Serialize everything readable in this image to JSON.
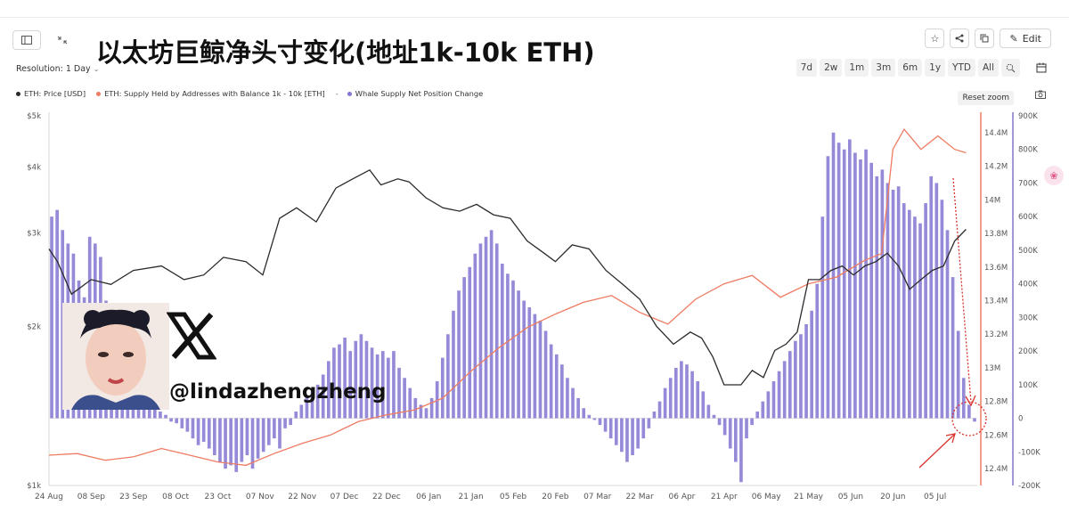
{
  "header": {
    "title": "以太坊巨鲸净头寸变化(地址1k-10k ETH)",
    "resolution_label": "Resolution: 1 Day",
    "edit_label": "Edit",
    "ranges": [
      "7d",
      "2w",
      "1m",
      "3m",
      "6m",
      "1y",
      "YTD",
      "All"
    ],
    "reset_zoom": "Reset zoom"
  },
  "watermark": {
    "handle": "@lindazhengzheng"
  },
  "colors": {
    "price": "#2b2b2b",
    "supply": "#ee7b62",
    "whale": "#8276d0",
    "annotation": "#d9302a"
  },
  "icons": [
    "sidebar-toggle-icon",
    "collapse-icon",
    "star-icon",
    "share-icon",
    "copy-icon",
    "pencil-icon",
    "search-zoom-icon",
    "calendar-icon",
    "camera-icon",
    "x-logo-icon"
  ],
  "chart_data": {
    "type": "bar",
    "legend": [
      {
        "name": "ETH: Price [USD]",
        "color": "#2b2b2b"
      },
      {
        "name": "ETH: Supply Held by Addresses with Balance 1k - 10k [ETH]",
        "color": "#ee7b62"
      },
      {
        "name": "Whale Supply Net Position Change",
        "color": "#8276d0"
      }
    ],
    "x_ticks": [
      "24 Aug",
      "08 Sep",
      "23 Sep",
      "08 Oct",
      "23 Oct",
      "07 Nov",
      "22 Nov",
      "07 Dec",
      "22 Dec",
      "06 Jan",
      "21 Jan",
      "05 Feb",
      "20 Feb",
      "07 Mar",
      "22 Mar",
      "06 Apr",
      "21 Apr",
      "06 May",
      "21 May",
      "05 Jun",
      "20 Jun",
      "05 Jul"
    ],
    "y_left_ticks": [
      "$5k",
      "$4k",
      "$3k",
      "$2k",
      "$1k"
    ],
    "y_left_values": [
      5000,
      4000,
      3000,
      2000,
      1000
    ],
    "y_left_scale": "log",
    "y_right1_ticks": [
      "14.4M",
      "14.2M",
      "14M",
      "13.8M",
      "13.6M",
      "13.4M",
      "13.2M",
      "13M",
      "12.8M",
      "12.6M",
      "12.4M"
    ],
    "y_right1_range": [
      12.3,
      14.5
    ],
    "y_right2_ticks": [
      "900K",
      "800K",
      "700K",
      "600K",
      "500K",
      "400K",
      "300K",
      "200K",
      "100K",
      "0",
      "-100K",
      "-200K"
    ],
    "y_right2_range": [
      -200000,
      900000
    ],
    "series": [
      {
        "name": "ETH: Price [USD]",
        "x": [
          0,
          3,
          8,
          15,
          22,
          30,
          40,
          48,
          55,
          62,
          70,
          76,
          82,
          88,
          95,
          102,
          108,
          114,
          118,
          124,
          128,
          134,
          140,
          146,
          152,
          158,
          164,
          170,
          176,
          180,
          186,
          192,
          198,
          204,
          210,
          216,
          222,
          228,
          232,
          236,
          240,
          246,
          250,
          254,
          258,
          262,
          266,
          270,
          274,
          278,
          282,
          286,
          290,
          294,
          298,
          302,
          306,
          310,
          314,
          318,
          322,
          326
        ],
        "values": [
          2800,
          2650,
          2300,
          2450,
          2400,
          2550,
          2600,
          2450,
          2500,
          2700,
          2650,
          2500,
          3200,
          3350,
          3150,
          3650,
          3800,
          3950,
          3700,
          3800,
          3750,
          3500,
          3350,
          3300,
          3400,
          3250,
          3200,
          2900,
          2750,
          2650,
          2850,
          2800,
          2550,
          2400,
          2250,
          2000,
          1850,
          1950,
          1900,
          1750,
          1550,
          1550,
          1650,
          1600,
          1800,
          1850,
          1950,
          2450,
          2450,
          2550,
          2600,
          2500,
          2600,
          2650,
          2750,
          2600,
          2350,
          2450,
          2550,
          2600,
          2900,
          3050
        ]
      },
      {
        "name": "ETH: Supply Held by Addresses with Balance 1k - 10k [ETH]",
        "x": [
          0,
          10,
          20,
          30,
          40,
          50,
          60,
          70,
          80,
          90,
          100,
          110,
          120,
          130,
          140,
          150,
          160,
          170,
          180,
          190,
          200,
          210,
          220,
          230,
          240,
          250,
          260,
          270,
          280,
          290,
          296,
          300,
          304,
          310,
          316,
          322,
          326
        ],
        "values": [
          12.48,
          12.49,
          12.45,
          12.47,
          12.52,
          12.48,
          12.44,
          12.42,
          12.49,
          12.55,
          12.6,
          12.68,
          12.72,
          12.75,
          12.82,
          12.98,
          13.12,
          13.24,
          13.32,
          13.39,
          13.43,
          13.33,
          13.26,
          13.41,
          13.5,
          13.55,
          13.42,
          13.5,
          13.54,
          13.64,
          13.68,
          14.3,
          14.42,
          14.3,
          14.38,
          14.3,
          14.28
        ]
      },
      {
        "name": "Whale Supply Net Position Change",
        "x_note": "days since 24 Aug",
        "values": [
          600000,
          620000,
          560000,
          520000,
          490000,
          410000,
          360000,
          540000,
          520000,
          480000,
          350000,
          250000,
          200000,
          160000,
          130000,
          110000,
          90000,
          70000,
          60000,
          40000,
          20000,
          10000,
          -10000,
          -15000,
          -30000,
          -40000,
          -60000,
          -80000,
          -70000,
          -90000,
          -110000,
          -130000,
          -150000,
          -140000,
          -160000,
          -130000,
          -110000,
          -150000,
          -120000,
          -100000,
          -80000,
          -60000,
          -90000,
          -30000,
          -20000,
          20000,
          40000,
          60000,
          80000,
          100000,
          130000,
          170000,
          210000,
          220000,
          240000,
          200000,
          230000,
          250000,
          230000,
          210000,
          190000,
          200000,
          180000,
          200000,
          150000,
          120000,
          90000,
          60000,
          40000,
          30000,
          60000,
          110000,
          180000,
          250000,
          320000,
          380000,
          420000,
          450000,
          490000,
          520000,
          540000,
          560000,
          520000,
          460000,
          430000,
          410000,
          380000,
          350000,
          330000,
          310000,
          290000,
          260000,
          220000,
          190000,
          160000,
          120000,
          90000,
          60000,
          30000,
          10000,
          -5000,
          -20000,
          -40000,
          -60000,
          -80000,
          -100000,
          -130000,
          -110000,
          -90000,
          -60000,
          -30000,
          20000,
          50000,
          90000,
          120000,
          150000,
          170000,
          160000,
          140000,
          110000,
          80000,
          40000,
          10000,
          -20000,
          -50000,
          -90000,
          -130000,
          -190000,
          -60000,
          -20000,
          20000,
          50000,
          80000,
          110000,
          140000,
          170000,
          200000,
          230000,
          250000,
          280000,
          320000,
          400000,
          600000,
          780000,
          850000,
          820000,
          800000,
          830000,
          790000,
          770000,
          800000,
          760000,
          720000,
          740000,
          700000,
          680000,
          690000,
          640000,
          620000,
          600000,
          580000,
          640000,
          720000,
          700000,
          650000,
          560000,
          420000,
          260000,
          120000,
          40000,
          -10000
        ]
      }
    ]
  }
}
